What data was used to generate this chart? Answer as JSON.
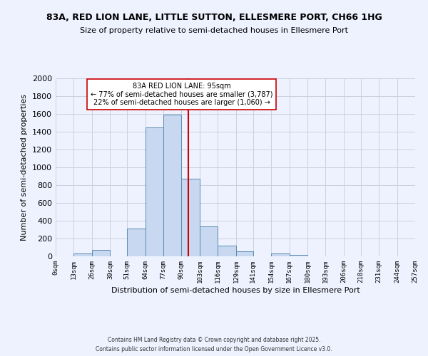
{
  "title_line1": "83A, RED LION LANE, LITTLE SUTTON, ELLESMERE PORT, CH66 1HG",
  "title_line2": "Size of property relative to semi-detached houses in Ellesmere Port",
  "xlabel": "Distribution of semi-detached houses by size in Ellesmere Port",
  "ylabel": "Number of semi-detached properties",
  "bin_edges": [
    0,
    13,
    26,
    39,
    51,
    64,
    77,
    90,
    103,
    116,
    129,
    141,
    154,
    167,
    180,
    193,
    206,
    218,
    231,
    244,
    257
  ],
  "bin_labels": [
    "0sqm",
    "13sqm",
    "26sqm",
    "39sqm",
    "51sqm",
    "64sqm",
    "77sqm",
    "90sqm",
    "103sqm",
    "116sqm",
    "129sqm",
    "141sqm",
    "154sqm",
    "167sqm",
    "180sqm",
    "193sqm",
    "206sqm",
    "218sqm",
    "231sqm",
    "244sqm",
    "257sqm"
  ],
  "counts": [
    0,
    30,
    75,
    0,
    315,
    1450,
    1590,
    870,
    335,
    120,
    55,
    0,
    30,
    15,
    0,
    0,
    0,
    0,
    0,
    0
  ],
  "bar_facecolor": "#c8d8f0",
  "bar_edgecolor": "#5a8ab0",
  "property_value": 95,
  "vline_color": "#cc0000",
  "annotation_title": "83A RED LION LANE: 95sqm",
  "annotation_line2": "← 77% of semi-detached houses are smaller (3,787)",
  "annotation_line3": "22% of semi-detached houses are larger (1,060) →",
  "annotation_box_edgecolor": "#cc0000",
  "ylim": [
    0,
    2000
  ],
  "yticks": [
    0,
    200,
    400,
    600,
    800,
    1000,
    1200,
    1400,
    1600,
    1800,
    2000
  ],
  "background_color": "#eef2ff",
  "grid_color": "#c8d0e0",
  "footer_line1": "Contains HM Land Registry data © Crown copyright and database right 2025.",
  "footer_line2": "Contains public sector information licensed under the Open Government Licence v3.0."
}
